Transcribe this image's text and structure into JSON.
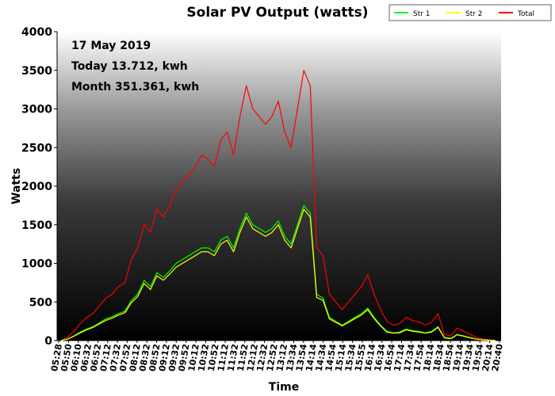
{
  "chart_data": {
    "type": "line",
    "title": "Solar PV Output (watts)",
    "xlabel": "Time",
    "ylabel": "Watts",
    "ylim": [
      0,
      4000
    ],
    "yticks": [
      0,
      500,
      1000,
      1500,
      2000,
      2500,
      3000,
      3500,
      4000
    ],
    "xticks": [
      "05:28",
      "05:50",
      "06:10",
      "06:32",
      "06:52",
      "07:12",
      "07:32",
      "07:52",
      "08:12",
      "08:32",
      "08:52",
      "09:12",
      "09:32",
      "09:52",
      "10:12",
      "10:32",
      "10:52",
      "11:12",
      "11:32",
      "11:52",
      "12:12",
      "12:32",
      "12:52",
      "13:12",
      "13:34",
      "13:54",
      "14:14",
      "14:34",
      "14:54",
      "15:14",
      "15:34",
      "15:55",
      "16:14",
      "16:34",
      "16:54",
      "17:14",
      "17:34",
      "17:54",
      "18:14",
      "18:34",
      "18:54",
      "19:14",
      "19:34",
      "19:54",
      "20:14",
      "20:40"
    ],
    "legend_position": "top-right",
    "annotations": [
      "17 May 2019",
      "Today 13.712, kwh",
      "Month 351.361, kwh"
    ],
    "series": [
      {
        "name": "Str 1",
        "color": "#00ff00",
        "values": [
          0,
          20,
          60,
          110,
          150,
          180,
          230,
          280,
          310,
          350,
          380,
          520,
          600,
          780,
          700,
          880,
          820,
          900,
          1000,
          1050,
          1100,
          1150,
          1200,
          1200,
          1150,
          1300,
          1350,
          1200,
          1450,
          1650,
          1500,
          1450,
          1400,
          1450,
          1550,
          1350,
          1250,
          1500,
          1750,
          1650,
          600,
          550,
          300,
          250,
          200,
          250,
          300,
          350,
          420,
          300,
          200,
          120,
          100,
          110,
          150,
          130,
          120,
          100,
          120,
          180,
          40,
          30,
          80,
          60,
          40,
          20,
          10,
          5,
          0
        ]
      },
      {
        "name": "Str 2",
        "color": "#ffff00",
        "values": [
          0,
          18,
          55,
          100,
          140,
          170,
          215,
          260,
          290,
          330,
          360,
          490,
          570,
          740,
          660,
          840,
          780,
          860,
          950,
          1000,
          1050,
          1100,
          1150,
          1150,
          1100,
          1250,
          1300,
          1150,
          1400,
          1600,
          1450,
          1400,
          1350,
          1400,
          1500,
          1300,
          1200,
          1450,
          1700,
          1600,
          560,
          520,
          280,
          235,
          190,
          235,
          285,
          330,
          400,
          285,
          190,
          110,
          95,
          100,
          140,
          120,
          110,
          95,
          110,
          170,
          35,
          25,
          75,
          55,
          35,
          18,
          8,
          4,
          0
        ]
      },
      {
        "name": "Total",
        "color": "#ff0000",
        "values": [
          0,
          40,
          120,
          220,
          300,
          350,
          450,
          550,
          600,
          700,
          750,
          1050,
          1200,
          1500,
          1400,
          1700,
          1600,
          1750,
          1950,
          2050,
          2150,
          2250,
          2400,
          2350,
          2250,
          2600,
          2700,
          2400,
          2900,
          3300,
          3000,
          2900,
          2800,
          2900,
          3100,
          2700,
          2500,
          3000,
          3500,
          3300,
          1200,
          1100,
          600,
          500,
          400,
          500,
          600,
          700,
          850,
          600,
          400,
          250,
          200,
          220,
          300,
          260,
          240,
          200,
          240,
          350,
          80,
          60,
          160,
          120,
          80,
          40,
          20,
          10,
          0
        ]
      }
    ]
  }
}
